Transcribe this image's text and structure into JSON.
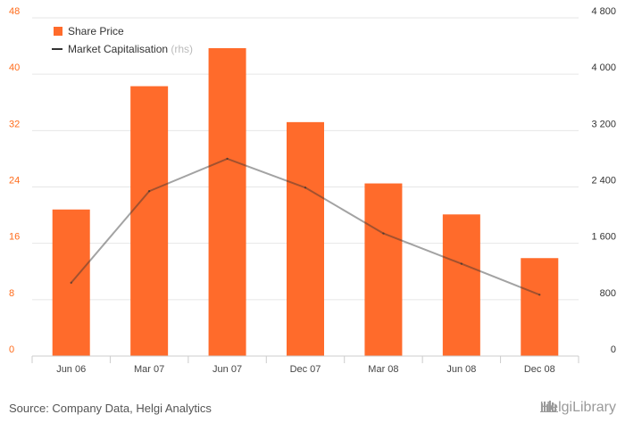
{
  "chart_data": {
    "type": "bar",
    "categories": [
      "Jun 06",
      "Mar 07",
      "Jun 07",
      "Dec 07",
      "Mar 08",
      "Jun 08",
      "Dec 08"
    ],
    "series": [
      {
        "name": "Share Price",
        "type": "bar",
        "axis": "left",
        "color": "#ff6b2b",
        "values": [
          20.8,
          38.3,
          43.7,
          33.2,
          24.5,
          20.1,
          13.9
        ]
      },
      {
        "name": "Market Capitalisation",
        "type": "line",
        "axis": "right",
        "color": "#333333",
        "values": [
          1040,
          2340,
          2800,
          2390,
          1740,
          1310,
          870
        ]
      }
    ],
    "y_left": {
      "ticks": [
        "0",
        "8",
        "16",
        "24",
        "32",
        "40",
        "48"
      ],
      "range": [
        0,
        48
      ]
    },
    "y_right": {
      "ticks": [
        "0",
        "800",
        "1 600",
        "2 400",
        "3 200",
        "4 000",
        "4 800"
      ],
      "range": [
        0,
        4800
      ]
    },
    "legend": {
      "placement": "top-left",
      "items": [
        {
          "label": "Share Price",
          "sub": ""
        },
        {
          "label": "Market Capitalisation",
          "sub": "(rhs)"
        }
      ]
    },
    "grid": true
  },
  "footer": {
    "source": "Source: Company Data, Helgi Analytics",
    "brand": "HelgiLibrary"
  }
}
